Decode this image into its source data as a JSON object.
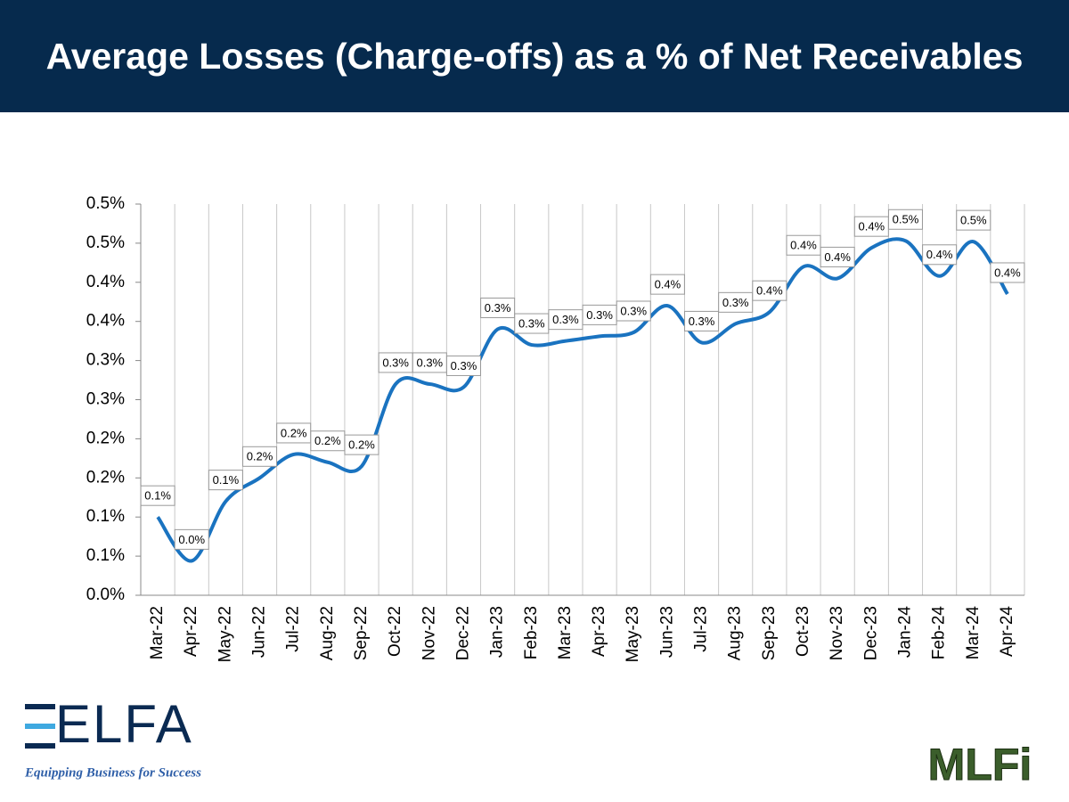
{
  "header": {
    "title": "Average Losses (Charge-offs) as a % of Net Receivables"
  },
  "chart_data": {
    "type": "line",
    "categories": [
      "Mar-22",
      "Apr-22",
      "May-22",
      "Jun-22",
      "Jul-22",
      "Aug-22",
      "Sep-22",
      "Oct-22",
      "Nov-22",
      "Dec-22",
      "Jan-23",
      "Feb-23",
      "Mar-23",
      "Apr-23",
      "May-23",
      "Jun-23",
      "Jul-23",
      "Aug-23",
      "Sep-23",
      "Oct-23",
      "Nov-23",
      "Dec-23",
      "Jan-24",
      "Feb-24",
      "Mar-24",
      "Apr-24"
    ],
    "series": [
      {
        "color": "#1a73c0",
        "values": [
          0.1,
          0.044,
          0.12,
          0.15,
          0.18,
          0.17,
          0.165,
          0.27,
          0.27,
          0.266,
          0.34,
          0.32,
          0.325,
          0.331,
          0.336,
          0.37,
          0.323,
          0.347,
          0.362,
          0.42,
          0.405,
          0.444,
          0.453,
          0.408,
          0.452,
          0.385
        ],
        "value_labels": [
          "0.1%",
          "0.0%",
          "0.1%",
          "0.2%",
          "0.2%",
          "0.2%",
          "0.2%",
          "0.3%",
          "0.3%",
          "0.3%",
          "0.3%",
          "0.3%",
          "0.3%",
          "0.3%",
          "0.3%",
          "0.4%",
          "0.3%",
          "0.3%",
          "0.4%",
          "0.4%",
          "0.4%",
          "0.4%",
          "0.5%",
          "0.4%",
          "0.5%",
          "0.4%"
        ]
      }
    ],
    "ylim": [
      0,
      0.5
    ],
    "yticks": [
      {
        "value": 0,
        "label": "0.0%"
      },
      {
        "value": 0.05,
        "label": "0.1%"
      },
      {
        "value": 0.1,
        "label": "0.1%"
      },
      {
        "value": 0.15,
        "label": "0.2%"
      },
      {
        "value": 0.2,
        "label": "0.2%"
      },
      {
        "value": 0.25,
        "label": "0.3%"
      },
      {
        "value": 0.3,
        "label": "0.3%"
      },
      {
        "value": 0.35,
        "label": "0.4%"
      },
      {
        "value": 0.4,
        "label": "0.4%"
      },
      {
        "value": 0.45,
        "label": "0.5%"
      },
      {
        "value": 0.5,
        "label": "0.5%"
      }
    ],
    "grid": true
  },
  "logos": {
    "left": "ELFA",
    "tagline": "Equipping Business for Success",
    "right": "MLFi"
  }
}
